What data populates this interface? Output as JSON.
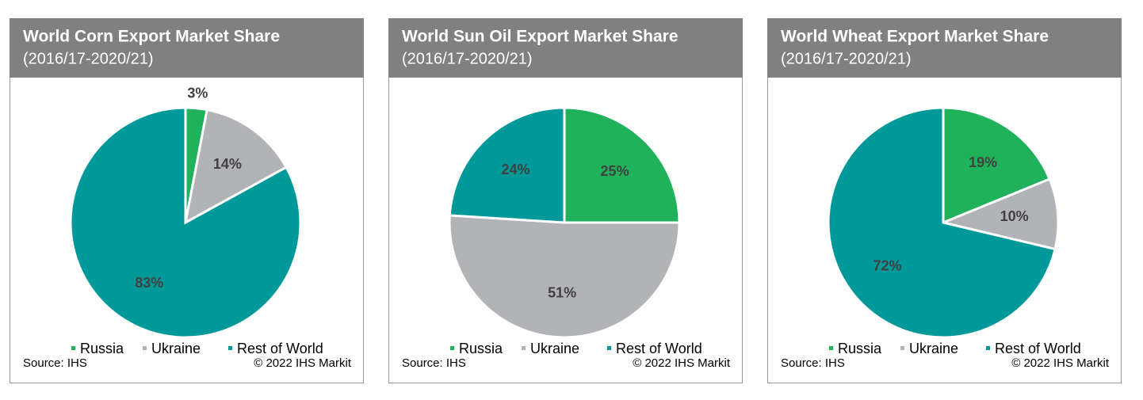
{
  "chart_data": [
    {
      "type": "pie",
      "title": "World Corn Export Market Share",
      "subtitle": "(2016/17-2020/21)",
      "categories": [
        "Russia",
        "Ukraine",
        "Rest of World"
      ],
      "values": [
        3,
        14,
        83
      ],
      "value_labels": [
        "3%",
        "14%",
        "83%"
      ],
      "colors": [
        "#1fb25a",
        "#b1b3b6",
        "#009999"
      ],
      "source": "Source: IHS",
      "credit": "© 2022 IHS Markit"
    },
    {
      "type": "pie",
      "title": "World Sun Oil Export Market Share",
      "subtitle": "(2016/17-2020/21)",
      "categories": [
        "Russia",
        "Ukraine",
        "Rest of World"
      ],
      "values": [
        25,
        51,
        24
      ],
      "value_labels": [
        "25%",
        "51%",
        "24%"
      ],
      "colors": [
        "#1fb25a",
        "#b1b3b6",
        "#009999"
      ],
      "source": "Source: IHS",
      "credit": "© 2022 IHS Markit"
    },
    {
      "type": "pie",
      "title": "World Wheat Export Market Share",
      "subtitle": "(2016/17-2020/21)",
      "categories": [
        "Russia",
        "Ukraine",
        "Rest of World"
      ],
      "values": [
        19,
        10,
        72
      ],
      "value_labels": [
        "19%",
        "10%",
        "72%"
      ],
      "colors": [
        "#1fb25a",
        "#b1b3b6",
        "#009999"
      ],
      "source": "Source: IHS",
      "credit": "© 2022 IHS Markit"
    }
  ]
}
